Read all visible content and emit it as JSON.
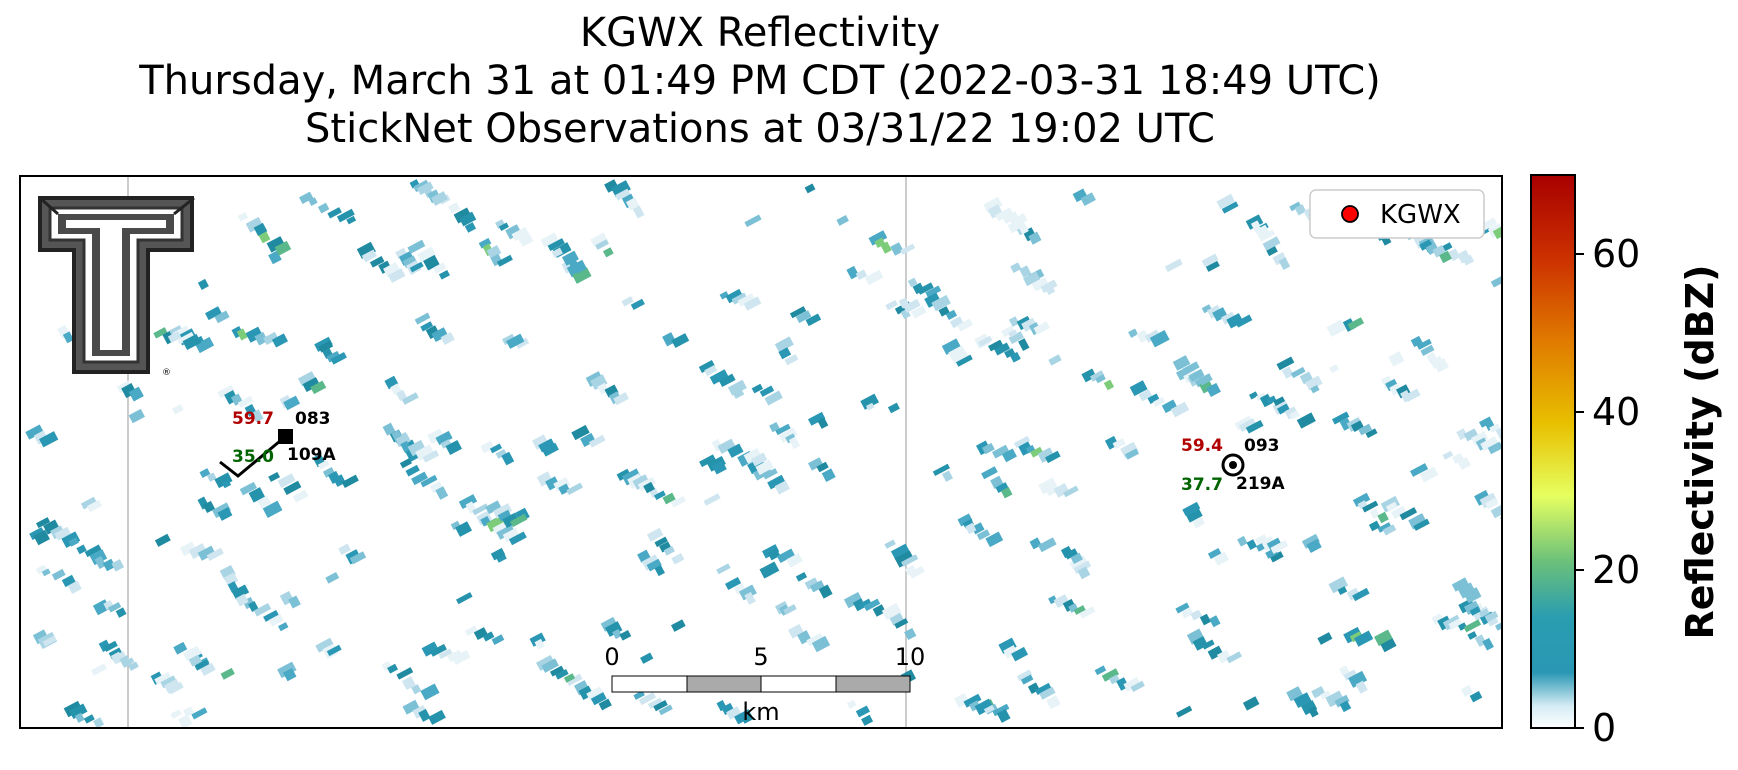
{
  "title": {
    "line1": "KGWX Reflectivity",
    "line2": "Thursday, March 31 at 01:49 PM CDT (2022-03-31 18:49 UTC)",
    "line3": "StickNet Observations at 03/31/22 19:02 UTC"
  },
  "legend": {
    "label": "KGWX",
    "marker_color": "#ff0000",
    "placement": "top-right"
  },
  "colorbar": {
    "label": "Reflectivity (dBZ)",
    "ticks": [
      "0",
      "20",
      "40",
      "60"
    ],
    "range": [
      0,
      70
    ],
    "colors": [
      "#ffffff",
      "#bfe0ec",
      "#2a98b4",
      "#1f8fa8",
      "#60c07a",
      "#e6ff66",
      "#e6c800",
      "#e07a00",
      "#d03a00",
      "#a80000"
    ]
  },
  "scalebar": {
    "ticks": [
      "0",
      "5",
      "10"
    ],
    "unit": "km"
  },
  "stations": [
    {
      "id": "109A",
      "temp": "59.7",
      "dew": "35.0",
      "dir": "083",
      "temp_color": "#b00000",
      "dew_color": "#006400"
    },
    {
      "id": "219A",
      "temp": "59.4",
      "dew": "37.7",
      "dir": "093",
      "temp_color": "#b00000",
      "dew_color": "#006400"
    }
  ],
  "logo": "texas-tech-double-t-logo",
  "chart_data": {
    "type": "heatmap",
    "title": "KGWX Reflectivity",
    "colorbar_label": "Reflectivity (dBZ)",
    "value_range": [
      0,
      70
    ],
    "dominant_values_dBZ": [
      2,
      5,
      8,
      12,
      18
    ],
    "max_observed_dBZ": 20,
    "grid": "off",
    "legend": "top-right"
  }
}
